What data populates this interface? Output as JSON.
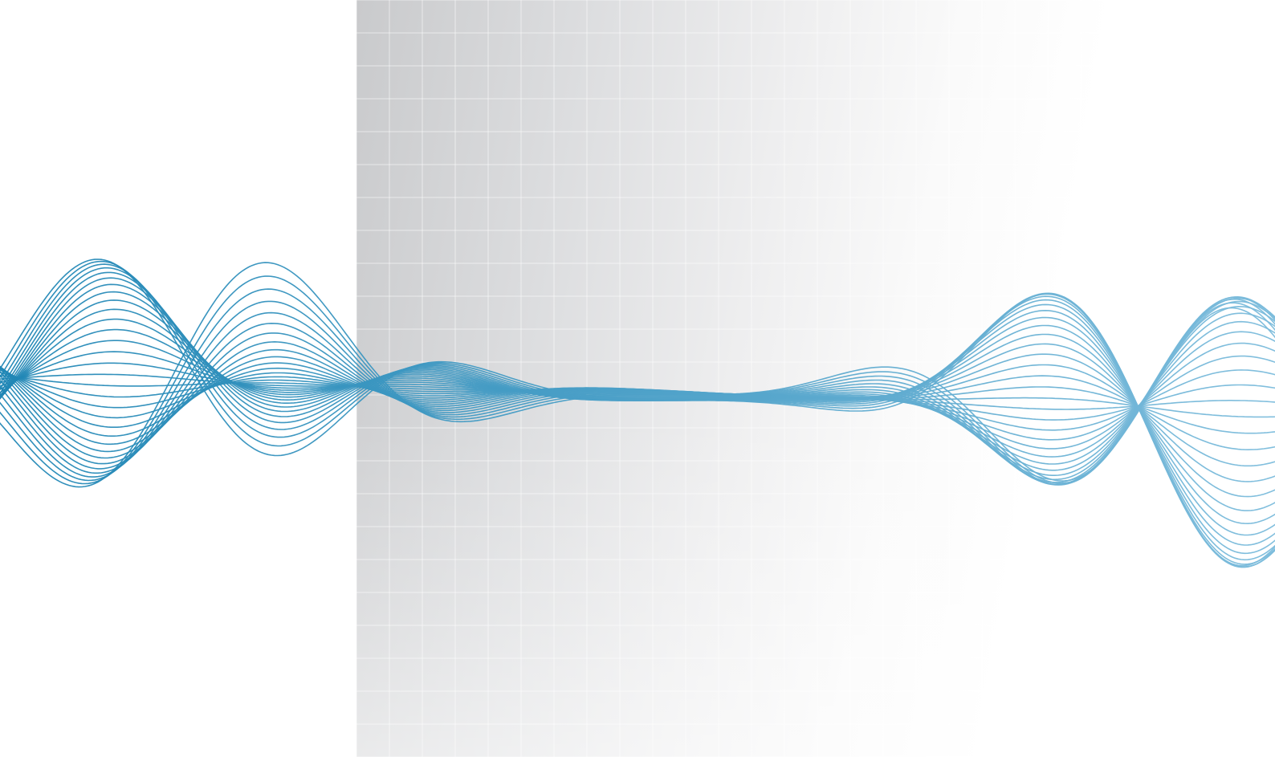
{
  "scene": {
    "background_color": "#ffffff",
    "panel_gradient": [
      "#c9cacc",
      "#ffffff"
    ],
    "grid_line_color": "#ffffff",
    "wave_colors": {
      "start": "#1f86b5",
      "end": "#8cc6e3"
    },
    "wave_count": 32
  }
}
